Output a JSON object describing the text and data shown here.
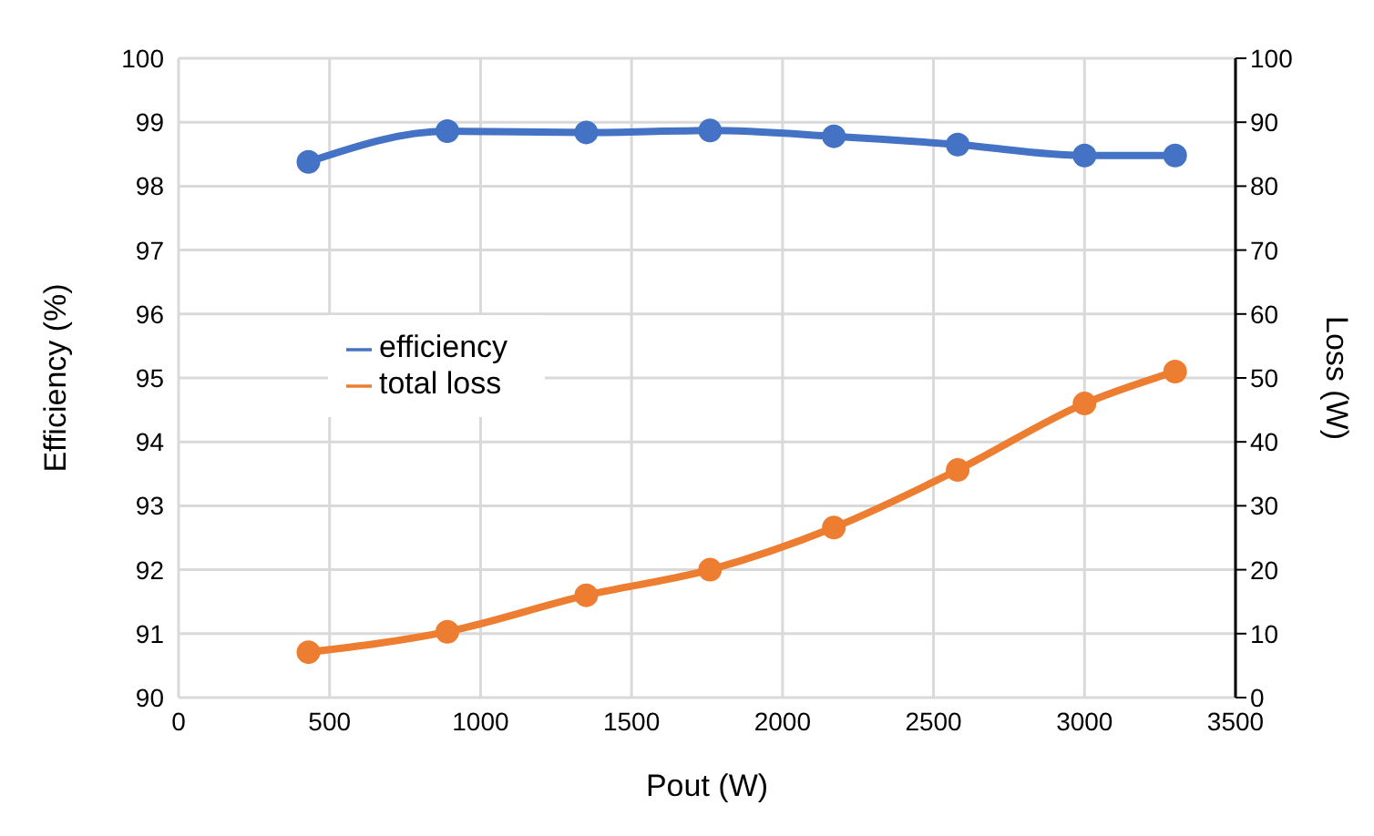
{
  "chart_data": {
    "type": "line",
    "xlabel": "Pout (W)",
    "ylabel": "Efficiency (%)",
    "y2label": "Loss (W)",
    "x": [
      430,
      890,
      1350,
      1760,
      2170,
      2580,
      3000,
      3300
    ],
    "series": [
      {
        "name": "efficiency",
        "color": "#4472c4",
        "values": [
          98.38,
          98.86,
          98.84,
          98.87,
          98.78,
          98.65,
          98.48,
          98.48
        ]
      },
      {
        "name": "total loss",
        "color": "#ed7d31",
        "axis": "y2",
        "values": [
          7.1,
          10.3,
          16.0,
          20.0,
          26.6,
          35.6,
          46.0,
          51.0
        ]
      }
    ],
    "xlim": [
      0,
      3500
    ],
    "xticks": [
      0,
      500,
      1000,
      1500,
      2000,
      2500,
      3000,
      3500
    ],
    "ylim": [
      90,
      100
    ],
    "yticks": [
      90,
      91,
      92,
      93,
      94,
      95,
      96,
      97,
      98,
      99,
      100
    ],
    "y2lim": [
      0,
      100
    ],
    "y2ticks": [
      0,
      10,
      20,
      30,
      40,
      50,
      60,
      70,
      80,
      90,
      100
    ],
    "grid": true,
    "legend": "left",
    "marker": "circle",
    "line_style": "solid"
  }
}
